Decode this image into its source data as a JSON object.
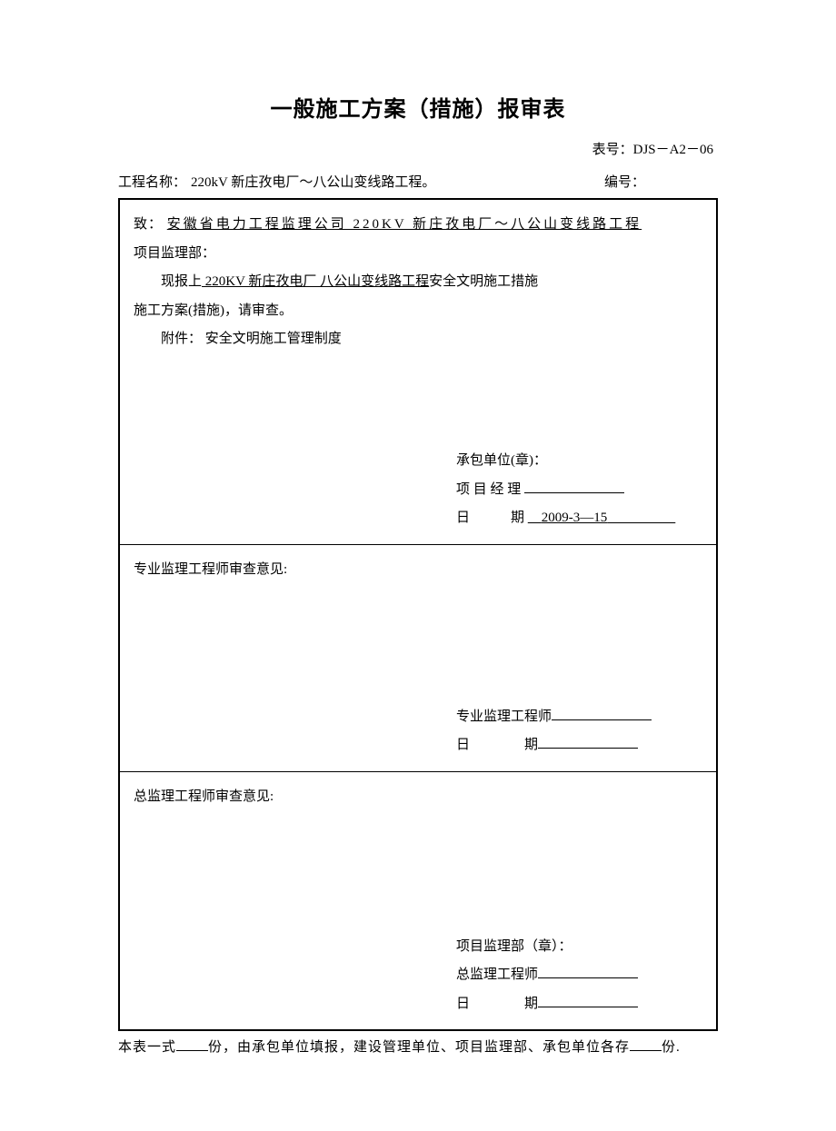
{
  "title": "一般施工方案（措施）报审表",
  "formNumberLabel": "表号：",
  "formNumber": "DJS－A2－06",
  "projectLabel": "工程名称：",
  "projectName": "220kV 新庄孜电厂～八公山变线路工程。",
  "numberLabel": "编号：",
  "section1": {
    "toLabel": "致：",
    "toValue": "安徽省电力工程监理公司 220KV 新庄孜电厂～八公山变线路工程",
    "deptLine": "项目监理部：",
    "reportPrefix": "现报上",
    "reportUnderline": " 220KV 新庄孜电厂 八公山变线路工程",
    "reportSuffix": "安全文明施工措施",
    "planLine": "施工方案(措施)，请审查。",
    "attachLabel": "附件：",
    "attachValue": "安全文明施工管理制度",
    "contractorLabel": "承包单位(章)：",
    "managerLabel": "项 目 经 理",
    "dateLabel": "日　　　期",
    "dateValue": "2009-3—15"
  },
  "section2": {
    "heading": "专业监理工程师审查意见:",
    "engineerLabel": "专业监理工程师",
    "dateLabel": "日　　　　期"
  },
  "section3": {
    "heading": "总监理工程师审查意见:",
    "deptLabel": "项目监理部（章）：",
    "chiefLabel": "总监理工程师",
    "dateLabel": "日　　　　期"
  },
  "footer": {
    "prefix": "本表一式",
    "mid": "份，由承包单位填报，建设管理单位、项目监理部、承包单位各存",
    "suffix": "份."
  }
}
